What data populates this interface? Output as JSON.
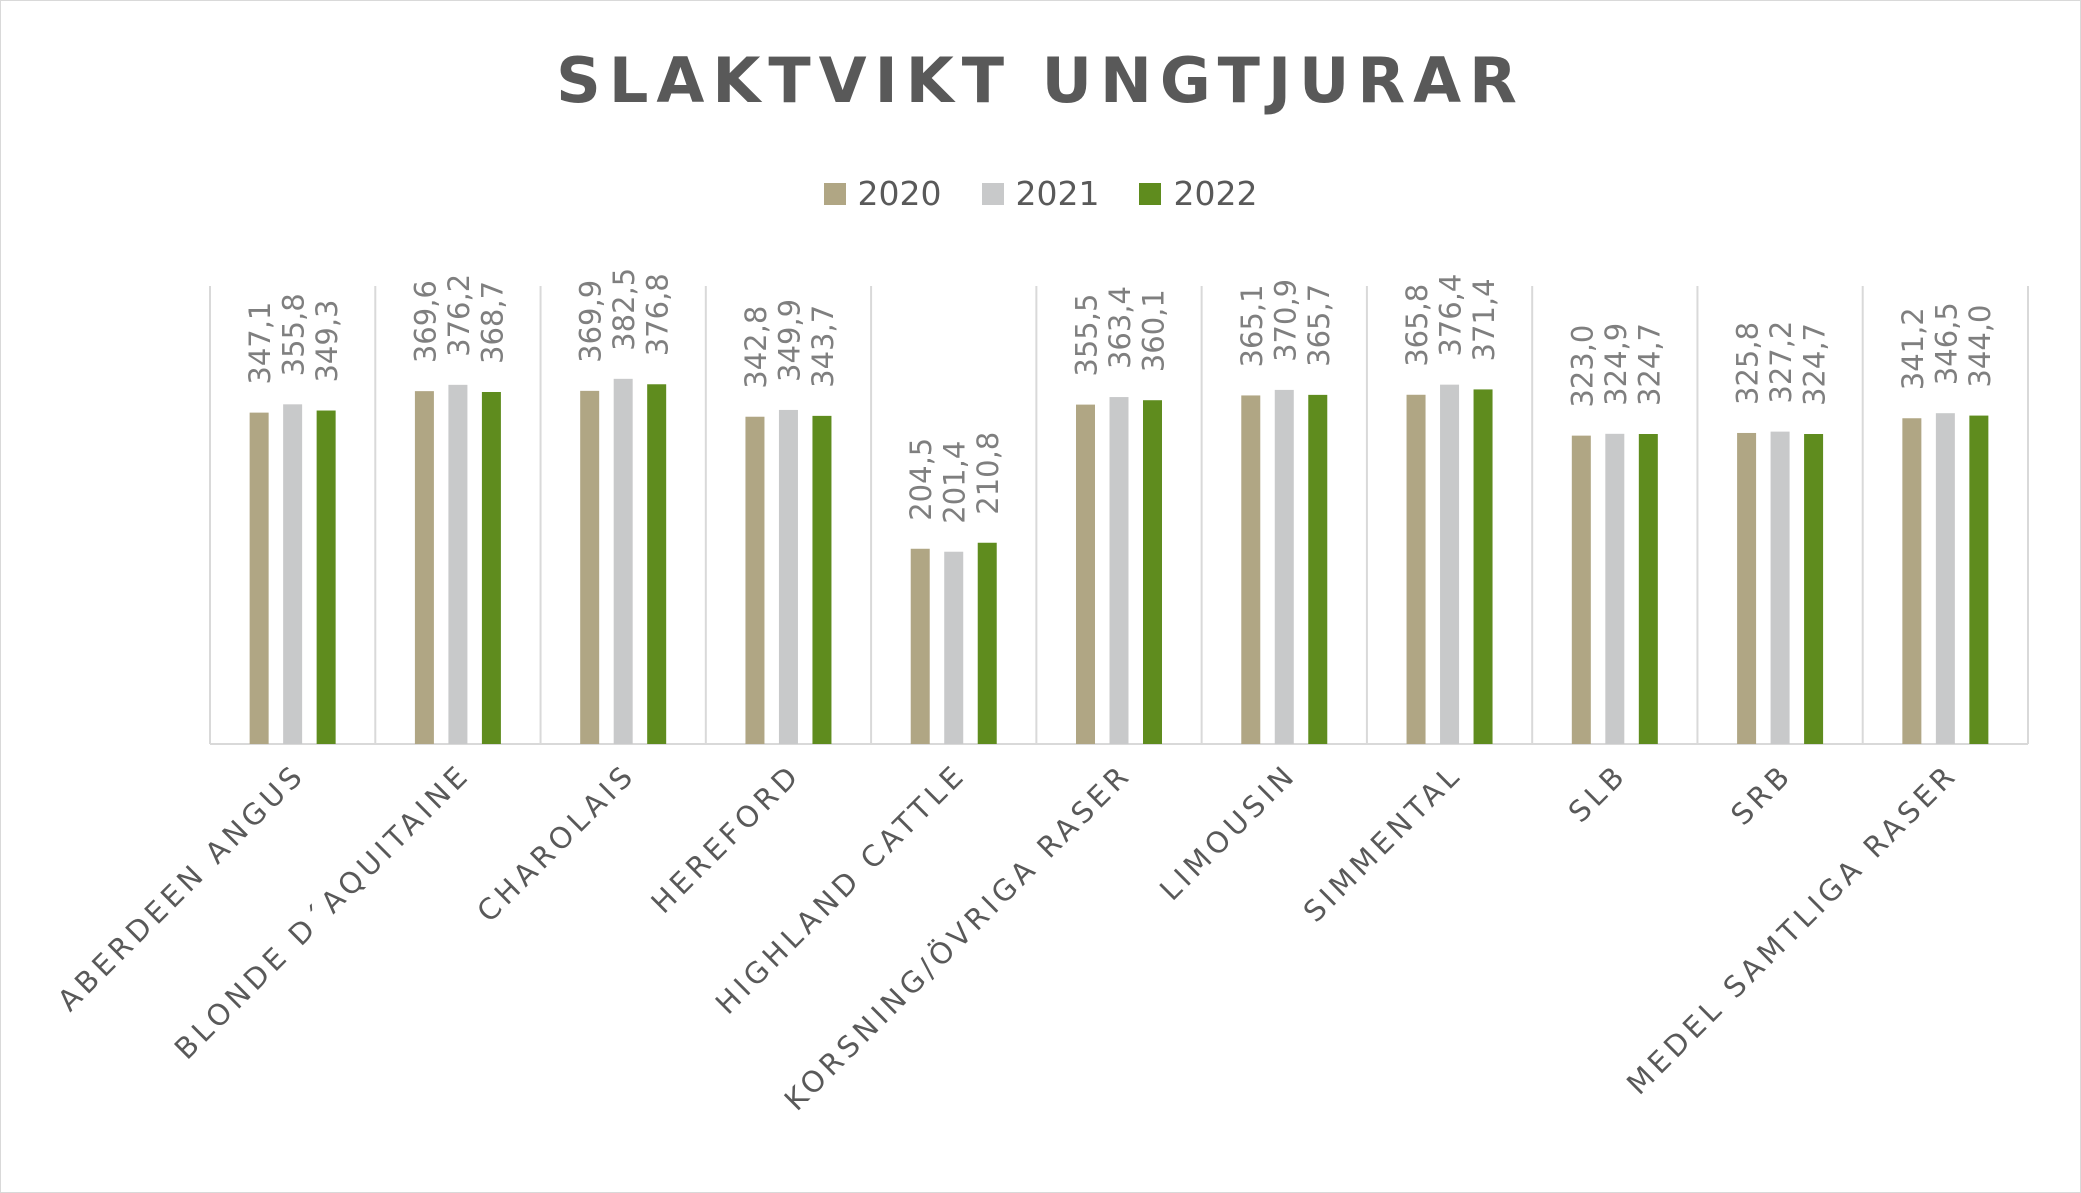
{
  "chart_data": {
    "type": "bar",
    "title": "SLAKTVIKT UNGTJURAR",
    "xlabel": "",
    "ylabel": "",
    "ylim": [
      0,
      440
    ],
    "grid": false,
    "legend_position": "top-center",
    "categories": [
      "ABERDEEN ANGUS",
      "BLONDE D´AQUITAINE",
      "CHAROLAIS",
      "HEREFORD",
      "HIGHLAND CATTLE",
      "KORSNING/ÖVRIGA RASER",
      "LIMOUSIN",
      "SIMMENTAL",
      "SLB",
      "SRB",
      "MEDEL SAMTLIGA RASER"
    ],
    "series": [
      {
        "name": "2020",
        "color": "#b0a684",
        "values": [
          347.1,
          369.6,
          369.9,
          342.8,
          204.5,
          355.5,
          365.1,
          365.8,
          323.0,
          325.8,
          341.2
        ],
        "labels": [
          "347,1",
          "369,6",
          "369,9",
          "342,8",
          "204,5",
          "355,5",
          "365,1",
          "365,8",
          "323,0",
          "325,8",
          "341,2"
        ]
      },
      {
        "name": "2021",
        "color": "#c8c9ca",
        "values": [
          355.8,
          376.2,
          382.5,
          349.9,
          201.4,
          363.4,
          370.9,
          376.4,
          324.9,
          327.2,
          346.5
        ],
        "labels": [
          "355,8",
          "376,2",
          "382,5",
          "349,9",
          "201,4",
          "363,4",
          "370,9",
          "376,4",
          "324,9",
          "327,2",
          "346,5"
        ]
      },
      {
        "name": "2022",
        "color": "#5f8c1e",
        "values": [
          349.3,
          368.7,
          376.8,
          343.7,
          210.8,
          360.1,
          365.7,
          371.4,
          324.7,
          324.7,
          344.0
        ],
        "labels": [
          "349,3",
          "368,7",
          "376,8",
          "343,7",
          "210,8",
          "360,1",
          "365,7",
          "371,4",
          "324,7",
          "324,7",
          "344,0"
        ]
      }
    ]
  }
}
